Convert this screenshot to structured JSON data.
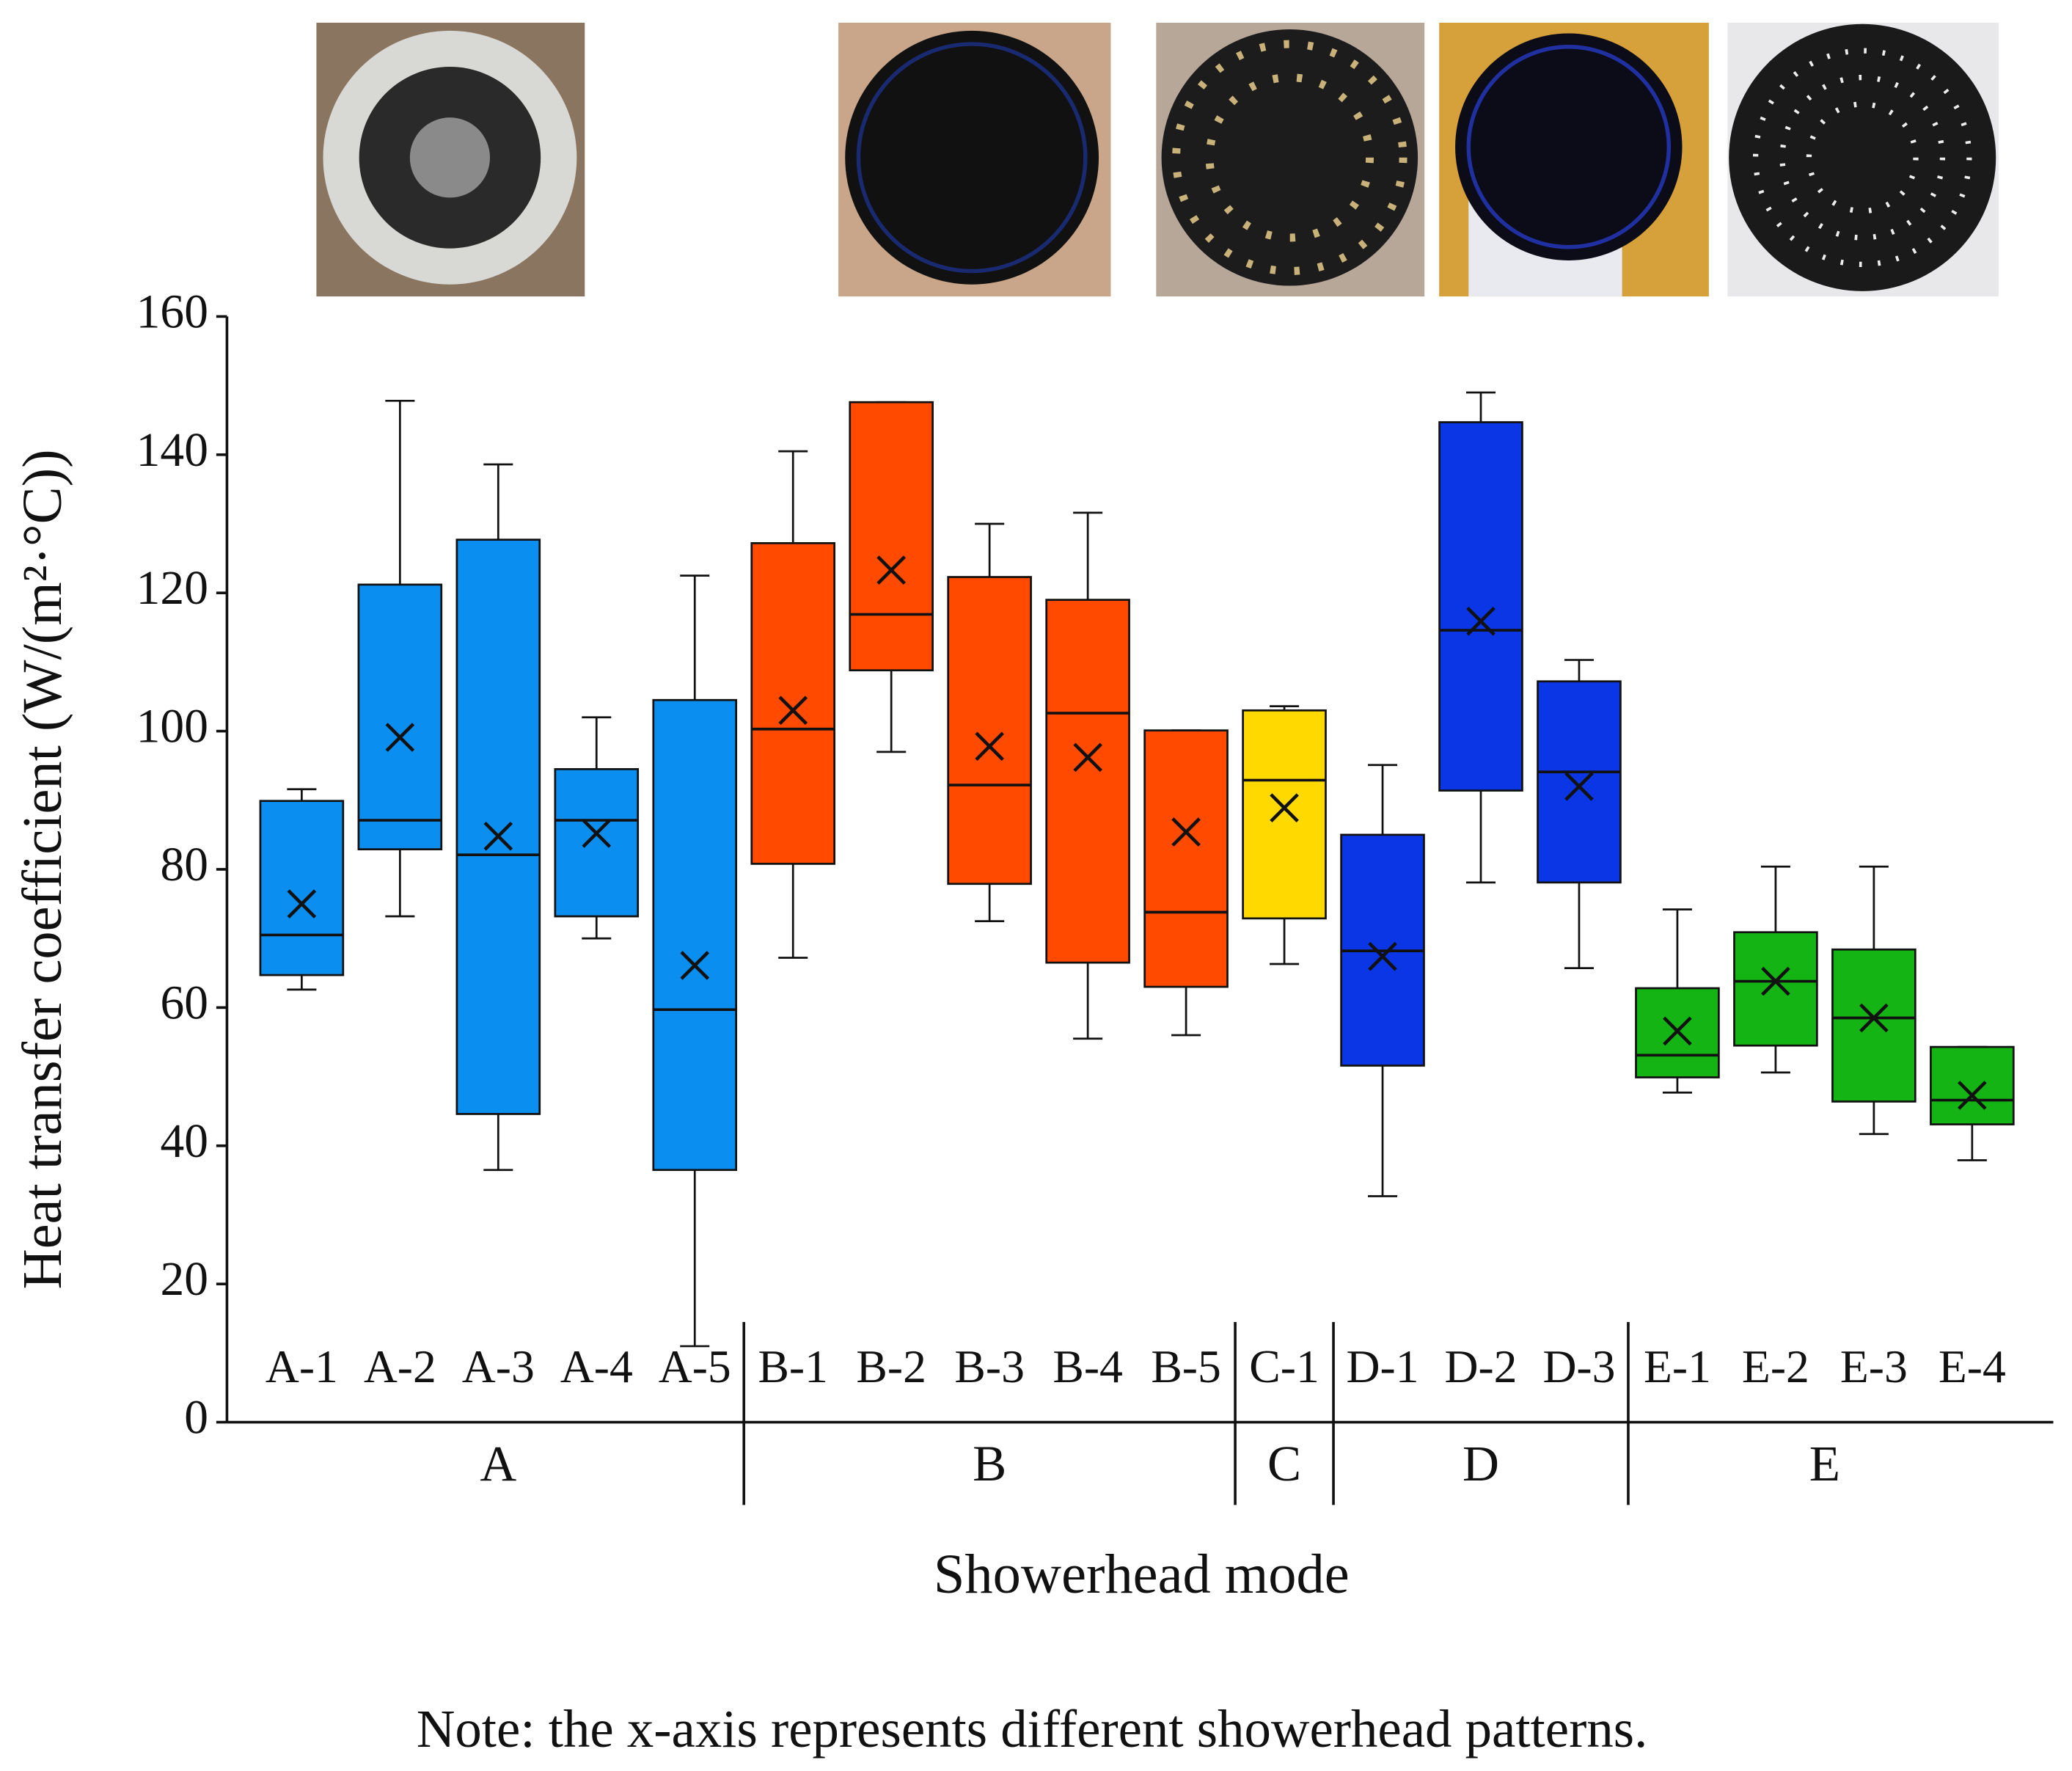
{
  "chart_data": {
    "type": "box",
    "ylabel": "Heat transfer coefficient (W/(m²·°C))",
    "xlabel": "Showerhead mode",
    "note": "Note: the x-axis represents different showerhead patterns.",
    "ylim": [
      0,
      160
    ],
    "yticks": [
      0,
      20,
      40,
      60,
      80,
      100,
      120,
      140,
      160
    ],
    "groups": [
      {
        "name": "A",
        "color": "#0a8ff0",
        "boxes": [
          {
            "category": "A-1",
            "min": 62.6,
            "q1": 64.7,
            "median": 70.5,
            "q3": 89.9,
            "max": 91.6,
            "mean": 75.0
          },
          {
            "category": "A-2",
            "min": 73.2,
            "q1": 82.9,
            "median": 87.1,
            "q3": 121.2,
            "max": 147.8,
            "mean": 99.1
          },
          {
            "category": "A-3",
            "min": 36.5,
            "q1": 44.6,
            "median": 82.1,
            "q3": 127.7,
            "max": 138.6,
            "mean": 84.8
          },
          {
            "category": "A-4",
            "min": 70.0,
            "q1": 73.2,
            "median": 87.1,
            "q3": 94.5,
            "max": 102.0,
            "mean": 85.2
          },
          {
            "category": "A-5",
            "min": 11.0,
            "q1": 36.5,
            "median": 59.7,
            "q3": 104.5,
            "max": 122.5,
            "mean": 66.1
          }
        ]
      },
      {
        "name": "B",
        "color": "#ff4a00",
        "boxes": [
          {
            "category": "B-1",
            "min": 67.2,
            "q1": 80.8,
            "median": 100.3,
            "q3": 127.2,
            "max": 140.5,
            "mean": 103.0
          },
          {
            "category": "B-2",
            "min": 97.0,
            "q1": 108.8,
            "median": 116.9,
            "q3": 147.6,
            "max": 147.6,
            "mean": 123.3
          },
          {
            "category": "B-3",
            "min": 72.5,
            "q1": 77.9,
            "median": 92.2,
            "q3": 122.3,
            "max": 130.0,
            "mean": 97.8
          },
          {
            "category": "B-4",
            "min": 55.5,
            "q1": 66.5,
            "median": 102.6,
            "q3": 119.0,
            "max": 131.6,
            "mean": 96.2
          },
          {
            "category": "B-5",
            "min": 56.0,
            "q1": 63.0,
            "median": 73.8,
            "q3": 100.1,
            "max": 100.1,
            "mean": 85.4
          }
        ]
      },
      {
        "name": "C",
        "color": "#ffd900",
        "boxes": [
          {
            "category": "C-1",
            "min": 66.3,
            "q1": 72.9,
            "median": 92.9,
            "q3": 103.0,
            "max": 103.6,
            "mean": 88.9
          }
        ]
      },
      {
        "name": "D",
        "color": "#0a36e6",
        "boxes": [
          {
            "category": "D-1",
            "min": 32.7,
            "q1": 51.6,
            "median": 68.2,
            "q3": 85.0,
            "max": 95.1,
            "mean": 67.4
          },
          {
            "category": "D-2",
            "min": 78.1,
            "q1": 91.4,
            "median": 114.6,
            "q3": 144.7,
            "max": 149.0,
            "mean": 115.9
          },
          {
            "category": "D-3",
            "min": 65.7,
            "q1": 78.1,
            "median": 94.1,
            "q3": 107.2,
            "max": 110.3,
            "mean": 92.0
          }
        ]
      },
      {
        "name": "E",
        "color": "#14b414",
        "boxes": [
          {
            "category": "E-1",
            "min": 47.7,
            "q1": 49.9,
            "median": 53.1,
            "q3": 62.8,
            "max": 74.2,
            "mean": 56.6
          },
          {
            "category": "E-2",
            "min": 50.6,
            "q1": 54.5,
            "median": 63.8,
            "q3": 70.9,
            "max": 80.4,
            "mean": 63.8
          },
          {
            "category": "E-3",
            "min": 41.7,
            "q1": 46.4,
            "median": 58.5,
            "q3": 68.4,
            "max": 80.4,
            "mean": 58.5
          },
          {
            "category": "E-4",
            "min": 37.9,
            "q1": 43.1,
            "median": 46.6,
            "q3": 54.3,
            "max": 54.3,
            "mean": 47.3
          }
        ]
      }
    ]
  }
}
